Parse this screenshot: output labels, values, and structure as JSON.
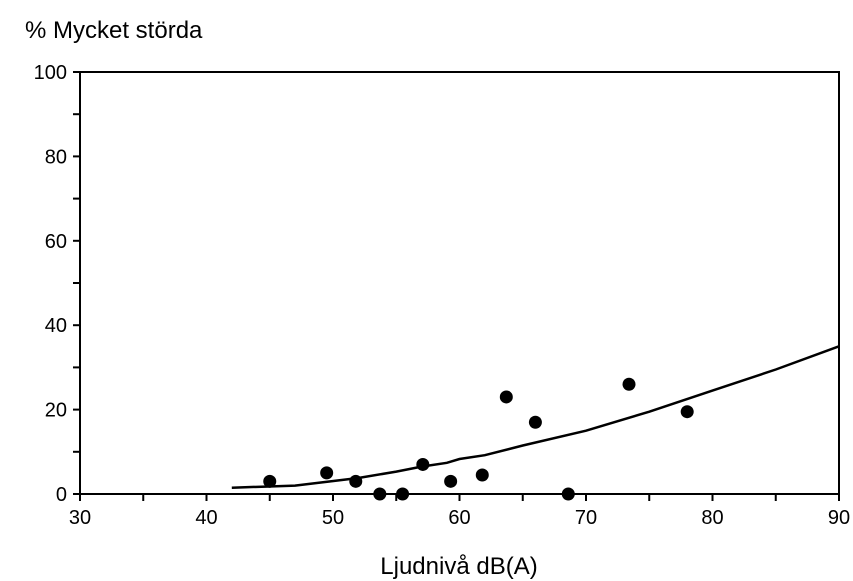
{
  "chart_data": {
    "type": "scatter",
    "title": "",
    "xlabel": "Ljudnivå dB(A)",
    "ylabel": "% Mycket störda",
    "xlim": [
      30,
      90
    ],
    "ylim": [
      0,
      100
    ],
    "x_ticks": [
      "30",
      "40",
      "50",
      "60",
      "70",
      "80",
      "90"
    ],
    "y_ticks": [
      "0",
      "20",
      "40",
      "60",
      "80",
      "100"
    ],
    "grid": false,
    "points": [
      {
        "x": 45.0,
        "y": 3.0
      },
      {
        "x": 49.5,
        "y": 5.0
      },
      {
        "x": 51.8,
        "y": 3.0
      },
      {
        "x": 53.7,
        "y": 0.0
      },
      {
        "x": 55.5,
        "y": 0.0
      },
      {
        "x": 57.1,
        "y": 7.0
      },
      {
        "x": 59.3,
        "y": 3.0
      },
      {
        "x": 61.8,
        "y": 4.5
      },
      {
        "x": 63.7,
        "y": 23.0
      },
      {
        "x": 66.0,
        "y": 17.0
      },
      {
        "x": 68.6,
        "y": 0.0
      },
      {
        "x": 73.4,
        "y": 26.0
      },
      {
        "x": 78.0,
        "y": 19.5
      }
    ],
    "curve": [
      {
        "x": 42,
        "y": 1.5
      },
      {
        "x": 47,
        "y": 2.0
      },
      {
        "x": 52,
        "y": 3.8
      },
      {
        "x": 55,
        "y": 5.3
      },
      {
        "x": 57,
        "y": 6.5
      },
      {
        "x": 59,
        "y": 7.4
      },
      {
        "x": 60,
        "y": 8.3
      },
      {
        "x": 62,
        "y": 9.2
      },
      {
        "x": 65,
        "y": 11.5
      },
      {
        "x": 70,
        "y": 15.0
      },
      {
        "x": 75,
        "y": 19.5
      },
      {
        "x": 80,
        "y": 24.5
      },
      {
        "x": 85,
        "y": 29.5
      },
      {
        "x": 90,
        "y": 35.0
      }
    ]
  }
}
